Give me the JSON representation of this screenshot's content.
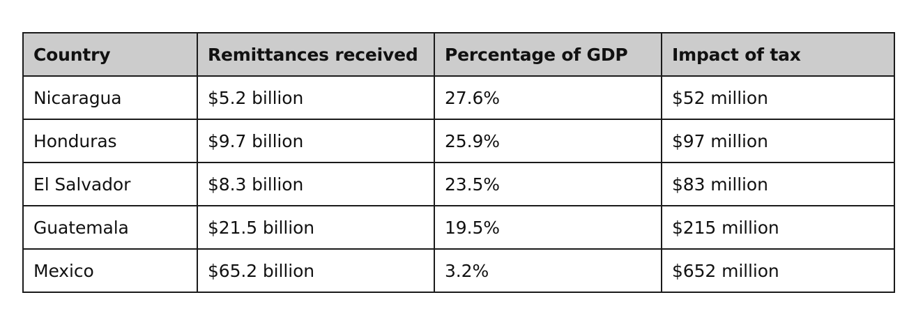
{
  "table": {
    "headers": [
      "Country",
      "Remittances received",
      "Percentage of GDP",
      "Impact of tax"
    ],
    "rows": [
      [
        "Nicaragua",
        "$5.2 billion",
        "27.6%",
        "$52 million"
      ],
      [
        "Honduras",
        "$9.7 billion",
        "25.9%",
        "$97 million"
      ],
      [
        "El Salvador",
        "$8.3 billion",
        "23.5%",
        "$83 million"
      ],
      [
        "Guatemala",
        "$21.5 billion",
        "19.5%",
        "$215 million"
      ],
      [
        "Mexico",
        "$65.2 billion",
        "3.2%",
        "$652 million"
      ]
    ]
  }
}
